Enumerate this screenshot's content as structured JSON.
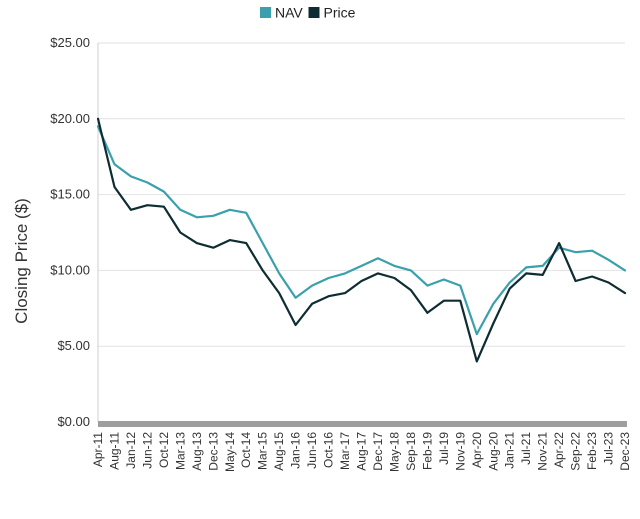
{
  "chart_data": {
    "type": "line",
    "title": "",
    "xlabel": "",
    "ylabel": "Closing Price ($)",
    "ylim": [
      0,
      25
    ],
    "y_ticks": [
      0,
      5,
      10,
      15,
      20,
      25
    ],
    "y_tick_labels": [
      "$0.00",
      "$5.00",
      "$10.00",
      "$15.00",
      "$20.00",
      "$25.00"
    ],
    "x_tick_labels": [
      "Apr-11",
      "Aug-11",
      "Jan-12",
      "Jun-12",
      "Oct-12",
      "Mar-13",
      "Aug-13",
      "Dec-13",
      "May-14",
      "Oct-14",
      "Mar-15",
      "Aug-15",
      "Jan-16",
      "Jun-16",
      "Oct-16",
      "Mar-17",
      "Aug-17",
      "Dec-17",
      "May-18",
      "Sep-18",
      "Feb-19",
      "Jul-19",
      "Nov-19",
      "Apr-20",
      "Aug-20",
      "Jan-21",
      "Jul-21",
      "Nov-21",
      "Apr-22",
      "Sep-22",
      "Feb-23",
      "Jul-23",
      "Dec-23"
    ],
    "grid": "horizontal",
    "legend_position": "top-center",
    "x": [
      "Apr-11",
      "Aug-11",
      "Jan-12",
      "Jun-12",
      "Oct-12",
      "Mar-13",
      "Aug-13",
      "Dec-13",
      "May-14",
      "Oct-14",
      "Mar-15",
      "Aug-15",
      "Jan-16",
      "Jun-16",
      "Oct-16",
      "Mar-17",
      "Aug-17",
      "Dec-17",
      "May-18",
      "Sep-18",
      "Feb-19",
      "Jul-19",
      "Nov-19",
      "Apr-20",
      "Aug-20",
      "Jan-21",
      "Jul-21",
      "Nov-21",
      "Apr-22",
      "Sep-22",
      "Feb-23",
      "Jul-23",
      "Dec-23"
    ],
    "series": [
      {
        "name": "NAV",
        "color": "#3aa0ad",
        "values": [
          19.5,
          17.0,
          16.2,
          15.8,
          15.2,
          14.0,
          13.5,
          13.6,
          14.0,
          13.8,
          11.8,
          9.8,
          8.2,
          9.0,
          9.5,
          9.8,
          10.3,
          10.8,
          10.3,
          10.0,
          9.0,
          9.4,
          9.0,
          5.8,
          7.8,
          9.2,
          10.2,
          10.3,
          11.5,
          11.2,
          11.3,
          10.7,
          10.0
        ]
      },
      {
        "name": "Price",
        "color": "#0e2d33",
        "values": [
          20.0,
          15.5,
          14.0,
          14.3,
          14.2,
          12.5,
          11.8,
          11.5,
          12.0,
          11.8,
          10.0,
          8.5,
          6.4,
          7.8,
          8.3,
          8.5,
          9.3,
          9.8,
          9.5,
          8.7,
          7.2,
          8.0,
          8.0,
          4.0,
          6.5,
          8.8,
          9.8,
          9.7,
          11.8,
          9.3,
          9.6,
          9.2,
          8.5
        ]
      }
    ]
  }
}
